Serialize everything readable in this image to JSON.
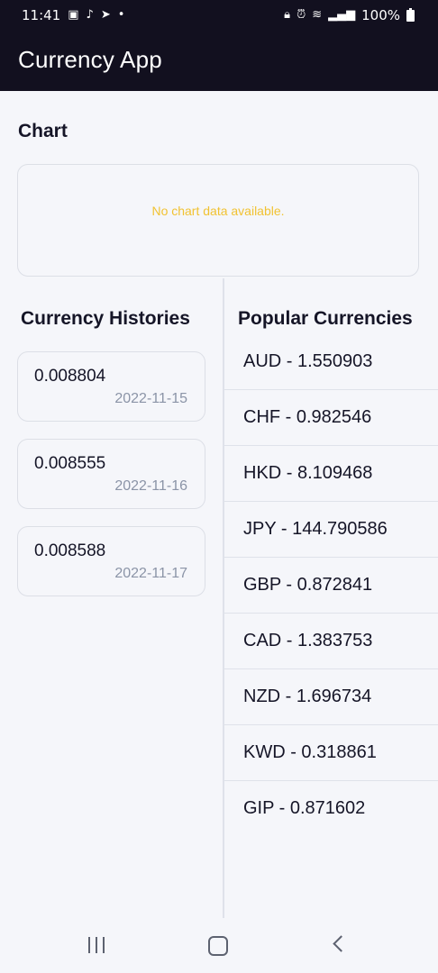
{
  "status_bar": {
    "time": "11:41",
    "battery": "100%",
    "left_icons": [
      "gallery-icon",
      "tiktok-icon",
      "telegram-icon",
      "dot-icon"
    ],
    "right_icons": [
      "lock-icon",
      "alarm-icon",
      "wifi-icon",
      "signal-icon",
      "battery-icon"
    ]
  },
  "app_bar": {
    "title": "Currency App"
  },
  "chart": {
    "heading": "Chart",
    "empty_message": "No chart data available."
  },
  "histories": {
    "heading": "Currency Histories",
    "items": [
      {
        "value": "0.008804",
        "date": "2022-11-15"
      },
      {
        "value": "0.008555",
        "date": "2022-11-16"
      },
      {
        "value": "0.008588",
        "date": "2022-11-17"
      }
    ]
  },
  "popular": {
    "heading": "Popular Currencies",
    "items": [
      {
        "label": "AUD - 1.550903"
      },
      {
        "label": "CHF - 0.982546"
      },
      {
        "label": "HKD - 8.109468"
      },
      {
        "label": "JPY - 144.790586"
      },
      {
        "label": "GBP - 0.872841"
      },
      {
        "label": "CAD - 1.383753"
      },
      {
        "label": "NZD - 1.696734"
      },
      {
        "label": "KWD - 0.318861"
      },
      {
        "label": "GIP - 0.871602"
      }
    ]
  },
  "colors": {
    "app_bar": "#12101f",
    "empty_message": "#f1c232",
    "date_text": "#8b94a7"
  }
}
